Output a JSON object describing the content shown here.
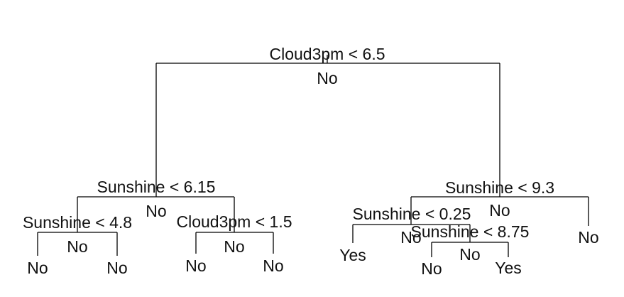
{
  "tree": {
    "root": {
      "split": "Cloud3pm < 6.5",
      "prediction": "No",
      "left": {
        "split": "Sunshine < 6.15",
        "prediction": "No",
        "left": {
          "split": "Sunshine < 4.8",
          "prediction": "No",
          "left": {
            "leaf": "No"
          },
          "right": {
            "leaf": "No"
          }
        },
        "right": {
          "split": "Cloud3pm < 1.5",
          "prediction": "No",
          "left": {
            "leaf": "No"
          },
          "right": {
            "leaf": "No"
          }
        }
      },
      "right": {
        "split": "Sunshine < 9.3",
        "prediction": "No",
        "left": {
          "split": "Sunshine < 0.25",
          "prediction": "No",
          "left": {
            "leaf": "Yes"
          },
          "right": {
            "split": "Sunshine < 8.75",
            "prediction": "No",
            "left": {
              "leaf": "No"
            },
            "right": {
              "leaf": "Yes"
            }
          }
        },
        "right": {
          "leaf": "No"
        }
      }
    }
  }
}
